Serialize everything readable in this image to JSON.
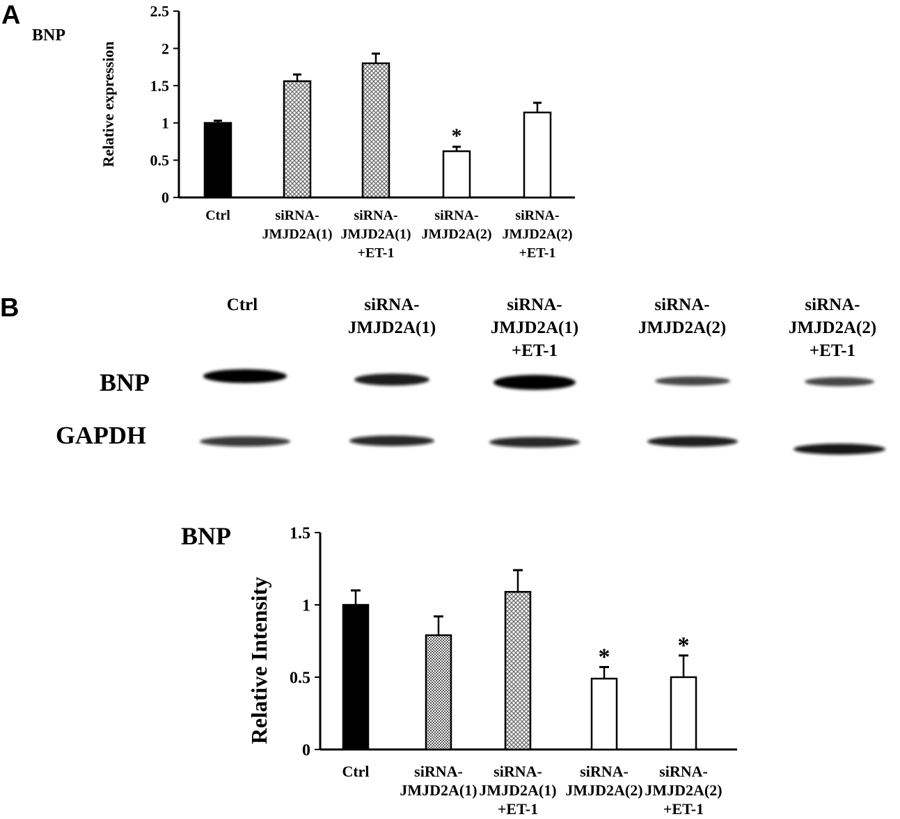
{
  "panel_labels": [
    "A",
    "B"
  ],
  "patterns": {
    "cross": "#9a9a9a",
    "dots": "#7a7a7a"
  },
  "chart_data": [
    {
      "type": "bar",
      "panel": "A",
      "title": "BNP",
      "ylabel": "Relative expression",
      "ylim": [
        0,
        2.5
      ],
      "yticks": [
        "0",
        "0.5",
        "1",
        "1.5",
        "2",
        "2.5"
      ],
      "categories": [
        [
          "Ctrl"
        ],
        [
          "siRNA-",
          "JMJD2A(1)"
        ],
        [
          "siRNA-",
          "JMJD2A(1)",
          "+ET-1"
        ],
        [
          "siRNA-",
          "JMJD2A(2)"
        ],
        [
          "siRNA-",
          "JMJD2A(2)",
          "+ET-1"
        ]
      ],
      "values": [
        1.0,
        1.56,
        1.8,
        0.62,
        1.14
      ],
      "errors": [
        0.03,
        0.09,
        0.13,
        0.06,
        0.13
      ],
      "fills": [
        "solid",
        "cross",
        "cross",
        "white",
        "white"
      ],
      "significance": [
        "",
        "",
        "",
        "*",
        ""
      ]
    },
    {
      "type": "bar",
      "panel": "B",
      "title": "BNP",
      "ylabel": "Relative Intensity",
      "ylim": [
        0,
        1.5
      ],
      "yticks": [
        "0",
        "0.5",
        "1",
        "1.5"
      ],
      "categories": [
        [
          "Ctrl"
        ],
        [
          "siRNA-",
          "JMJD2A(1)"
        ],
        [
          "siRNA-",
          "JMJD2A(1)",
          "+ET-1"
        ],
        [
          "siRNA-",
          "JMJD2A(2)"
        ],
        [
          "siRNA-",
          "JMJD2A(2)",
          "+ET-1"
        ]
      ],
      "values": [
        1.0,
        0.79,
        1.09,
        0.49,
        0.5
      ],
      "errors": [
        0.1,
        0.13,
        0.15,
        0.08,
        0.15
      ],
      "fills": [
        "solid",
        "dots",
        "cross",
        "white",
        "white"
      ],
      "significance": [
        "",
        "",
        "",
        "*",
        "*"
      ]
    }
  ],
  "blot": {
    "lanes": [
      [
        "Ctrl"
      ],
      [
        "siRNA-",
        "JMJD2A(1)"
      ],
      [
        "siRNA-",
        "JMJD2A(1)",
        "+ET-1"
      ],
      [
        "siRNA-",
        "JMJD2A(2)"
      ],
      [
        "siRNA-",
        "JMJD2A(2)",
        "+ET-1"
      ]
    ],
    "rows": [
      "BNP",
      "GAPDH"
    ],
    "intensity": {
      "BNP": [
        1.0,
        0.8,
        1.1,
        0.5,
        0.5
      ],
      "GAPDH": [
        0.75,
        0.85,
        0.85,
        0.9,
        0.95
      ]
    }
  }
}
